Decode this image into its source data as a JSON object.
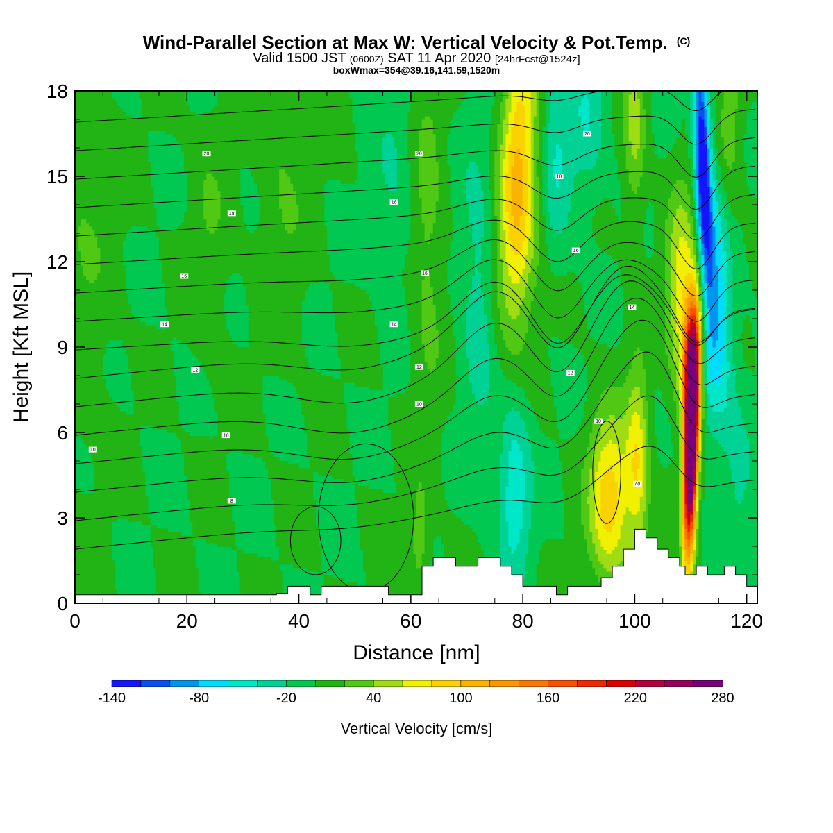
{
  "header": {
    "title_main": "Wind-Parallel Section at Max W: Vertical Velocity & Pot.Temp.",
    "title_copyright": "(C)",
    "valid_prefix": "Valid 1500 JST",
    "valid_utc": "(0600Z)",
    "valid_date": "SAT 11 Apr 2020",
    "forecast": "[24hrFcst@1524z]",
    "box_info": "boxWmax=354@39.16,141.59,1520m"
  },
  "chart_data": {
    "type": "heatmap",
    "xlabel": "Distance [nm]",
    "ylabel": "Height [Kft MSL]",
    "xlim": [
      0,
      121.9
    ],
    "ylim": [
      0,
      18
    ],
    "xticks": [
      0,
      20,
      40,
      60,
      80,
      100,
      120
    ],
    "yticks": [
      0,
      3,
      6,
      9,
      12,
      15,
      18
    ],
    "colorbar": {
      "label": "Vertical Velocity [cm/s]",
      "tick_labels": [
        "-140",
        "-80",
        "-20",
        "40",
        "100",
        "160",
        "220",
        "280"
      ],
      "levels": [
        -140,
        -120,
        -100,
        -80,
        -60,
        -40,
        -20,
        0,
        20,
        40,
        60,
        80,
        100,
        120,
        140,
        160,
        180,
        200,
        220,
        240,
        260,
        280
      ],
      "colors": [
        "#1414ff",
        "#0a50f0",
        "#0096f0",
        "#00dcff",
        "#00e6c8",
        "#00d296",
        "#00c850",
        "#22b414",
        "#50c814",
        "#a0dc14",
        "#f0f000",
        "#fad200",
        "#fab400",
        "#fa9600",
        "#fa7800",
        "#fa5000",
        "#f02800",
        "#dc0000",
        "#b4003c",
        "#96005a",
        "#780078"
      ]
    },
    "background_w": 0,
    "features": [
      {
        "name": "strong updraft",
        "x_center": 109.5,
        "z_bottom": 0.6,
        "z_top": 10.5,
        "w_max": 354
      },
      {
        "name": "strong downdraft aloft",
        "x_center": 112,
        "z_bottom": 11,
        "z_top": 18,
        "w_min": -140
      },
      {
        "name": "lee updraft",
        "x_center": 97,
        "z_bottom": 1.5,
        "z_top": 7.5,
        "w_max": 100
      },
      {
        "name": "mid updraft band",
        "x_center": 78,
        "z_bottom": 10,
        "z_top": 18,
        "w_max": 90
      },
      {
        "name": "mid downdraft band",
        "x_center": 79,
        "z_bottom": 2,
        "z_top": 6.5,
        "w_min": -60
      }
    ],
    "terrain": {
      "x": [
        0,
        4,
        8,
        12,
        16,
        20,
        24,
        28,
        32,
        36,
        38,
        40,
        42,
        44,
        48,
        52,
        56,
        58,
        60,
        62,
        64,
        66,
        68,
        70,
        72,
        74,
        76,
        78,
        80,
        82,
        84,
        86,
        88,
        90,
        92,
        94,
        96,
        98,
        100,
        102,
        104,
        106,
        108,
        109,
        110,
        111,
        112,
        113,
        114,
        116,
        118,
        120,
        121.9
      ],
      "z": [
        0.3,
        0.3,
        0.3,
        0.3,
        0.3,
        0.3,
        0.3,
        0.3,
        0.3,
        0.35,
        0.6,
        0.6,
        0.3,
        0.6,
        0.6,
        0.6,
        0.3,
        0.3,
        0.3,
        1.3,
        1.6,
        1.6,
        1.3,
        1.3,
        1.6,
        1.6,
        1.3,
        1.0,
        0.6,
        0.6,
        0.6,
        0.3,
        0.6,
        0.6,
        0.6,
        0.9,
        1.3,
        1.9,
        2.6,
        2.3,
        1.9,
        1.6,
        1.3,
        1.0,
        1.0,
        1.3,
        1.3,
        1.0,
        1.0,
        1.3,
        1.0,
        0.6,
        0.6
      ]
    },
    "theta_contours": {
      "levels": [
        4,
        6,
        8,
        10,
        12,
        14,
        16,
        18,
        20
      ],
      "labels": [
        {
          "text": "10",
          "x": 3.2,
          "z": 5.4
        },
        {
          "text": "8",
          "x": 28,
          "z": 3.6
        },
        {
          "text": "10",
          "x": 27,
          "z": 5.9
        },
        {
          "text": "12",
          "x": 21.5,
          "z": 8.2
        },
        {
          "text": "14",
          "x": 16,
          "z": 9.8
        },
        {
          "text": "16",
          "x": 19.5,
          "z": 11.5
        },
        {
          "text": "18",
          "x": 28,
          "z": 13.7
        },
        {
          "text": "20",
          "x": 23.5,
          "z": 15.8
        },
        {
          "text": "20",
          "x": 61.5,
          "z": 15.8
        },
        {
          "text": "18",
          "x": 57,
          "z": 14.1
        },
        {
          "text": "16",
          "x": 62.5,
          "z": 11.6
        },
        {
          "text": "14",
          "x": 57,
          "z": 9.8
        },
        {
          "text": "12",
          "x": 61.5,
          "z": 8.3
        },
        {
          "text": "10",
          "x": 61.5,
          "z": 7.0
        },
        {
          "text": "20",
          "x": 91.5,
          "z": 16.5
        },
        {
          "text": "18",
          "x": 86.5,
          "z": 15.0
        },
        {
          "text": "16",
          "x": 89.5,
          "z": 12.4
        },
        {
          "text": "14",
          "x": 99.5,
          "z": 10.4
        },
        {
          "text": "12",
          "x": 88.5,
          "z": 8.1
        },
        {
          "text": "10",
          "x": 93.5,
          "z": 6.4
        },
        {
          "text": "40",
          "x": 100.5,
          "z": 4.2
        }
      ]
    }
  }
}
